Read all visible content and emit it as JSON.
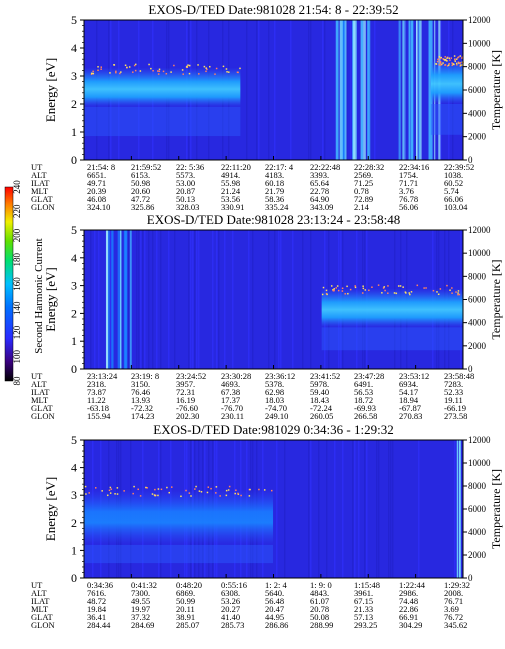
{
  "colorbar": {
    "label": "Second Harmonic Current",
    "ticks": [
      "80",
      "100",
      "120",
      "140",
      "160",
      "180",
      "200",
      "220",
      "240"
    ],
    "colors": [
      "#000000",
      "#3a0080",
      "#2a2aff",
      "#0070ff",
      "#00c0ff",
      "#00e070",
      "#60e000",
      "#f0f000",
      "#ff8000",
      "#ff0000"
    ]
  },
  "panels": [
    {
      "title": "EXOS-D/TED   Date:981028  21:54: 8 - 22:39:52",
      "ylabel": "Energy [eV]",
      "y2label": "Temperature [K]",
      "yticks": [
        "0",
        "1",
        "2",
        "3",
        "4",
        "5"
      ],
      "y2ticks": [
        "0",
        "2000",
        "4000",
        "6000",
        "8000",
        "10000",
        "12000"
      ],
      "rows": [
        {
          "label": "UT",
          "values": [
            "21:54: 8",
            "21:59:52",
            "22: 5:36",
            "22:11:20",
            "22:17: 4",
            "22:22:48",
            "22:28:32",
            "22:34:16",
            "22:39:52"
          ]
        },
        {
          "label": "ALT",
          "values": [
            "6651.",
            "6153.",
            "5573.",
            "4914.",
            "4183.",
            "3393.",
            "2569.",
            "1754.",
            "1038."
          ]
        },
        {
          "label": "ILAT",
          "values": [
            "49.71",
            "50.98",
            "53.00",
            "55.98",
            "60.18",
            "65.64",
            "71.25",
            "71.71",
            "60.52"
          ]
        },
        {
          "label": "MLT",
          "values": [
            "20.39",
            "20.60",
            "20.87",
            "21.24",
            "21.79",
            "22.78",
            "0.78",
            "3.76",
            "5.74"
          ]
        },
        {
          "label": "GLAT",
          "values": [
            "46.08",
            "47.72",
            "50.13",
            "53.56",
            "58.36",
            "64.90",
            "72.89",
            "76.78",
            "66.06"
          ]
        },
        {
          "label": "GLON",
          "values": [
            "324.10",
            "325.86",
            "328.03",
            "330.91",
            "335.24",
            "343.09",
            "2.14",
            "56.06",
            "103.04"
          ]
        }
      ]
    },
    {
      "title": "EXOS-D/TED   Date:981028  23:13:24 - 23:58:48",
      "ylabel": "Energy [eV]",
      "y2label": "Temperature [K]",
      "yticks": [
        "0",
        "1",
        "2",
        "3",
        "4",
        "5"
      ],
      "y2ticks": [
        "0",
        "2000",
        "4000",
        "6000",
        "8000",
        "10000",
        "12000"
      ],
      "rows": [
        {
          "label": "UT",
          "values": [
            "23:13:24",
            "23:19: 8",
            "23:24:52",
            "23:30:28",
            "23:36:12",
            "23:41:52",
            "23:47:28",
            "23:53:12",
            "23:58:48"
          ]
        },
        {
          "label": "ALT",
          "values": [
            "2318.",
            "3150.",
            "3957.",
            "4693.",
            "5378.",
            "5978.",
            "6491.",
            "6934.",
            "7283."
          ]
        },
        {
          "label": "ILAT",
          "values": [
            "73.87",
            "76.46",
            "72.31",
            "67.38",
            "62.98",
            "59.40",
            "56.53",
            "54.17",
            "52.33"
          ]
        },
        {
          "label": "MLT",
          "values": [
            "11.22",
            "13.93",
            "16.19",
            "17.37",
            "18.03",
            "18.43",
            "18.72",
            "18.94",
            "19.11"
          ]
        },
        {
          "label": "GLAT",
          "values": [
            "-63.18",
            "-72.32",
            "-76.60",
            "-76.70",
            "-74.70",
            "-72.24",
            "-69.93",
            "-67.87",
            "-66.19"
          ]
        },
        {
          "label": "GLON",
          "values": [
            "155.94",
            "174.23",
            "202.30",
            "230.11",
            "249.10",
            "260.05",
            "266.58",
            "270.83",
            "273.58"
          ]
        }
      ]
    },
    {
      "title": "EXOS-D/TED   Date:981029  0:34:36 - 1:29:32",
      "ylabel": "Energy [eV]",
      "y2label": "Temperature [K]",
      "yticks": [
        "0",
        "1",
        "2",
        "3",
        "4",
        "5"
      ],
      "y2ticks": [
        "0",
        "2000",
        "4000",
        "6000",
        "8000",
        "10000",
        "12000"
      ],
      "rows": [
        {
          "label": "UT",
          "values": [
            "0:34:36",
            "0:41:32",
            "0:48:20",
            "0:55:16",
            "1: 2: 4",
            "1: 9: 0",
            "1:15:48",
            "1:22:44",
            "1:29:32"
          ]
        },
        {
          "label": "ALT",
          "values": [
            "7616.",
            "7300.",
            "6869.",
            "6308.",
            "5640.",
            "4843.",
            "3961.",
            "2986.",
            "2008."
          ]
        },
        {
          "label": "ILAT",
          "values": [
            "48.72",
            "49.55",
            "50.99",
            "53.26",
            "56.48",
            "61.07",
            "67.15",
            "74.48",
            "76.71"
          ]
        },
        {
          "label": "MLT",
          "values": [
            "19.84",
            "19.97",
            "20.11",
            "20.27",
            "20.47",
            "20.78",
            "21.33",
            "22.86",
            "3.69"
          ]
        },
        {
          "label": "GLAT",
          "values": [
            "36.41",
            "37.32",
            "38.91",
            "41.40",
            "44.95",
            "50.08",
            "57.13",
            "66.91",
            "76.72"
          ]
        },
        {
          "label": "GLON",
          "values": [
            "284.44",
            "284.69",
            "285.07",
            "285.73",
            "286.86",
            "288.99",
            "293.25",
            "304.29",
            "345.62"
          ]
        }
      ]
    }
  ],
  "chart_data": [
    {
      "type": "heatmap",
      "title": "EXOS-D/TED   Date:981028  21:54: 8 - 22:39:52",
      "xlabel": "UT",
      "ylabel": "Energy [eV]",
      "y2label": "Temperature [K]",
      "x": [
        "21:54: 8",
        "21:59:52",
        "22: 5:36",
        "22:11:20",
        "22:17: 4",
        "22:22:48",
        "22:28:32",
        "22:34:16",
        "22:39:52"
      ],
      "ylim": [
        0,
        5
      ],
      "y2lim": [
        0,
        12000
      ],
      "colorbar_label": "Second Harmonic Current",
      "colorbar_range": [
        80,
        240
      ],
      "background_level": 130,
      "features": [
        {
          "kind": "band",
          "x_start": "21:54: 8",
          "x_end": "22:13",
          "y_low": 1.9,
          "y_high": 3.3,
          "y_peak": 2.6,
          "level": 165
        },
        {
          "kind": "lines",
          "x_start": "22:22:48",
          "x_end": "22:28:32",
          "level": 155
        },
        {
          "kind": "lines",
          "x_start": "22:32",
          "x_end": "22:37",
          "level": 170
        },
        {
          "kind": "band",
          "x_start": "22:36",
          "x_end": "22:39:52",
          "y_low": 2.0,
          "y_high": 3.6,
          "level": 160
        }
      ]
    },
    {
      "type": "heatmap",
      "title": "EXOS-D/TED   Date:981028  23:13:24 - 23:58:48",
      "xlabel": "UT",
      "ylabel": "Energy [eV]",
      "y2label": "Temperature [K]",
      "x": [
        "23:13:24",
        "23:19: 8",
        "23:24:52",
        "23:30:28",
        "23:36:12",
        "23:41:52",
        "23:47:28",
        "23:53:12",
        "23:58:48"
      ],
      "ylim": [
        0,
        5
      ],
      "y2lim": [
        0,
        12000
      ],
      "colorbar_label": "Second Harmonic Current",
      "colorbar_range": [
        80,
        240
      ],
      "background_level": 130,
      "features": [
        {
          "kind": "lines",
          "x_start": "23:16",
          "x_end": "23:19:30",
          "level": 165
        },
        {
          "kind": "band",
          "x_start": "23:41:52",
          "x_end": "23:58:48",
          "y_low": 1.5,
          "y_high": 2.9,
          "level": 145
        }
      ]
    },
    {
      "type": "heatmap",
      "title": "EXOS-D/TED   Date:981029  0:34:36 - 1:29:32",
      "xlabel": "UT",
      "ylabel": "Energy [eV]",
      "y2label": "Temperature [K]",
      "x": [
        "0:34:36",
        "0:41:32",
        "0:48:20",
        "0:55:16",
        "1: 2: 4",
        "1: 9: 0",
        "1:15:48",
        "1:22:44",
        "1:29:32"
      ],
      "ylim": [
        0,
        5
      ],
      "y2lim": [
        0,
        12000
      ],
      "colorbar_label": "Second Harmonic Current",
      "colorbar_range": [
        80,
        240
      ],
      "background_level": 130,
      "features": [
        {
          "kind": "band",
          "x_start": "0:34:36",
          "x_end": "1: 2",
          "y_low": 1.2,
          "y_high": 3.2,
          "y_peak": 2.3,
          "level": 150
        },
        {
          "kind": "lines",
          "x_start": "1:28:30",
          "x_end": "1:29:32",
          "level": 150
        }
      ]
    }
  ]
}
